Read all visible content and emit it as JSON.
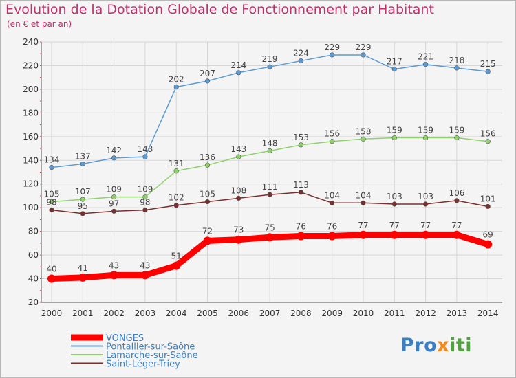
{
  "title": "Evolution de la Dotation Globale de Fonctionnement par Habitant",
  "subtitle": "(en € et par an)",
  "logo": {
    "part1": "Pro",
    "part2": "x",
    "part3": "iti"
  },
  "chart_data": {
    "type": "line",
    "x": [
      "2000",
      "2001",
      "2002",
      "2003",
      "2004",
      "2005",
      "2006",
      "2007",
      "2008",
      "2009",
      "2010",
      "2011",
      "2012",
      "2013",
      "2014"
    ],
    "yticks": [
      20,
      40,
      60,
      80,
      100,
      120,
      140,
      160,
      180,
      200,
      220,
      240
    ],
    "ylim": [
      20,
      240
    ],
    "grid": true,
    "legend_position": "bottom-left",
    "series": [
      {
        "name": "VONGES",
        "color": "#ff0000",
        "values": [
          40,
          41,
          43,
          43,
          51,
          72,
          73,
          75,
          76,
          76,
          77,
          77,
          77,
          77,
          69
        ]
      },
      {
        "name": "Pontailler-sur-Saône",
        "color": "#5b9bd5",
        "values": [
          134,
          137,
          142,
          143,
          202,
          207,
          214,
          219,
          224,
          229,
          229,
          217,
          221,
          218,
          215
        ]
      },
      {
        "name": "Lamarche-sur-Saône",
        "color": "#8fd16a",
        "values": [
          105,
          107,
          109,
          109,
          131,
          136,
          143,
          148,
          153,
          156,
          158,
          159,
          159,
          159,
          156
        ]
      },
      {
        "name": "Saint-Léger-Triey",
        "color": "#7a2e2e",
        "values": [
          98,
          95,
          97,
          98,
          102,
          105,
          108,
          111,
          113,
          104,
          104,
          103,
          103,
          106,
          101
        ]
      }
    ]
  }
}
